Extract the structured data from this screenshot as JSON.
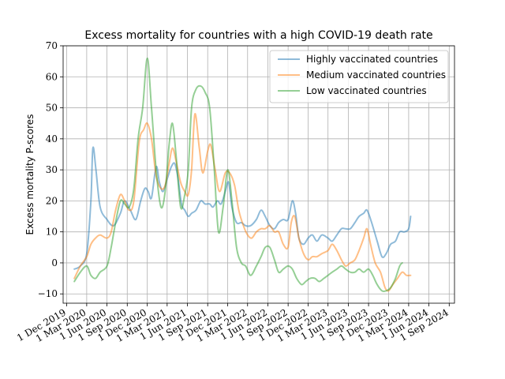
{
  "chart_data": {
    "type": "line",
    "title": "Excess mortality for countries with a high COVID-19 death rate",
    "xlabel": "",
    "ylabel": "Excess mortality P-scores",
    "ylim": [
      -13,
      70
    ],
    "xlim": [
      "2019-11-15",
      "2024-09-25"
    ],
    "grid": true,
    "legend_position": "top-right",
    "y_ticks": [
      -10,
      0,
      10,
      20,
      30,
      40,
      50,
      60,
      70
    ],
    "x_ticks": [
      {
        "date": "2019-12-01",
        "label": "1 Dec 2019"
      },
      {
        "date": "2020-03-01",
        "label": "1 Mar 2020"
      },
      {
        "date": "2020-06-01",
        "label": "1 Jun 2020"
      },
      {
        "date": "2020-09-01",
        "label": "1 Sep 2020"
      },
      {
        "date": "2020-12-01",
        "label": "1 Dec 2020"
      },
      {
        "date": "2021-03-01",
        "label": "1 Mar 2021"
      },
      {
        "date": "2021-06-01",
        "label": "1 Jun 2021"
      },
      {
        "date": "2021-09-01",
        "label": "1 Sep 2021"
      },
      {
        "date": "2021-12-01",
        "label": "1 Dec 2021"
      },
      {
        "date": "2022-03-01",
        "label": "1 Mar 2022"
      },
      {
        "date": "2022-06-01",
        "label": "1 Jun 2022"
      },
      {
        "date": "2022-09-01",
        "label": "1 Sep 2022"
      },
      {
        "date": "2022-12-01",
        "label": "1 Dec 2022"
      },
      {
        "date": "2023-03-01",
        "label": "1 Mar 2023"
      },
      {
        "date": "2023-06-01",
        "label": "1 Jun 2023"
      },
      {
        "date": "2023-09-01",
        "label": "1 Sep 2023"
      },
      {
        "date": "2023-12-01",
        "label": "1 Dec 2023"
      },
      {
        "date": "2024-03-01",
        "label": "1 Mar 2024"
      },
      {
        "date": "2024-06-01",
        "label": "1 Jun 2024"
      },
      {
        "date": "2024-09-01",
        "label": "1 Sep 2024"
      }
    ],
    "series": [
      {
        "name": "Highly vaccinated countries",
        "color": "#1f77b4",
        "points": [
          [
            "2020-01-05",
            -2
          ],
          [
            "2020-02-01",
            -1
          ],
          [
            "2020-03-01",
            3
          ],
          [
            "2020-03-20",
            20
          ],
          [
            "2020-03-29",
            37
          ],
          [
            "2020-04-12",
            30
          ],
          [
            "2020-05-01",
            18
          ],
          [
            "2020-06-01",
            14
          ],
          [
            "2020-07-01",
            12
          ],
          [
            "2020-08-01",
            16
          ],
          [
            "2020-08-20",
            20
          ],
          [
            "2020-09-15",
            17
          ],
          [
            "2020-10-10",
            14
          ],
          [
            "2020-11-01",
            20
          ],
          [
            "2020-11-20",
            24
          ],
          [
            "2020-12-05",
            23
          ],
          [
            "2020-12-20",
            21
          ],
          [
            "2021-01-10",
            31
          ],
          [
            "2021-01-25",
            26
          ],
          [
            "2021-02-10",
            23
          ],
          [
            "2021-03-01",
            27
          ],
          [
            "2021-03-20",
            31
          ],
          [
            "2021-04-05",
            32
          ],
          [
            "2021-04-20",
            27
          ],
          [
            "2021-05-05",
            19
          ],
          [
            "2021-05-20",
            17
          ],
          [
            "2021-06-05",
            15
          ],
          [
            "2021-06-20",
            16
          ],
          [
            "2021-07-10",
            17
          ],
          [
            "2021-08-01",
            20
          ],
          [
            "2021-08-20",
            19
          ],
          [
            "2021-09-10",
            19
          ],
          [
            "2021-09-25",
            18
          ],
          [
            "2021-10-15",
            20
          ],
          [
            "2021-11-01",
            19
          ],
          [
            "2021-11-20",
            23
          ],
          [
            "2021-12-05",
            26
          ],
          [
            "2021-12-20",
            18
          ],
          [
            "2022-01-10",
            13
          ],
          [
            "2022-02-01",
            13
          ],
          [
            "2022-02-20",
            12
          ],
          [
            "2022-03-15",
            12
          ],
          [
            "2022-04-10",
            14
          ],
          [
            "2022-05-01",
            17
          ],
          [
            "2022-05-20",
            15
          ],
          [
            "2022-06-10",
            12
          ],
          [
            "2022-07-01",
            11
          ],
          [
            "2022-07-20",
            13
          ],
          [
            "2022-08-10",
            14
          ],
          [
            "2022-09-01",
            14
          ],
          [
            "2022-09-20",
            20
          ],
          [
            "2022-10-05",
            16
          ],
          [
            "2022-10-20",
            8
          ],
          [
            "2022-11-10",
            6
          ],
          [
            "2022-12-01",
            8
          ],
          [
            "2022-12-20",
            9
          ],
          [
            "2023-01-10",
            7
          ],
          [
            "2023-02-01",
            9
          ],
          [
            "2023-03-01",
            8
          ],
          [
            "2023-03-20",
            7
          ],
          [
            "2023-04-10",
            9
          ],
          [
            "2023-05-01",
            11
          ],
          [
            "2023-05-20",
            11
          ],
          [
            "2023-06-10",
            11
          ],
          [
            "2023-07-01",
            13
          ],
          [
            "2023-07-20",
            15
          ],
          [
            "2023-08-10",
            16
          ],
          [
            "2023-08-25",
            17
          ],
          [
            "2023-09-15",
            13
          ],
          [
            "2023-10-10",
            7
          ],
          [
            "2023-11-01",
            2
          ],
          [
            "2023-11-20",
            3
          ],
          [
            "2023-12-10",
            6
          ],
          [
            "2024-01-01",
            7
          ],
          [
            "2024-01-20",
            10
          ],
          [
            "2024-02-10",
            10
          ],
          [
            "2024-03-01",
            11
          ],
          [
            "2024-03-10",
            15
          ]
        ]
      },
      {
        "name": "Medium vaccinated countries",
        "color": "#ff7f0e",
        "points": [
          [
            "2020-01-05",
            -5
          ],
          [
            "2020-02-01",
            -1
          ],
          [
            "2020-03-01",
            2
          ],
          [
            "2020-03-20",
            6
          ],
          [
            "2020-04-10",
            8
          ],
          [
            "2020-05-01",
            9
          ],
          [
            "2020-06-01",
            8
          ],
          [
            "2020-06-20",
            10
          ],
          [
            "2020-07-10",
            17
          ],
          [
            "2020-08-01",
            22
          ],
          [
            "2020-08-20",
            20
          ],
          [
            "2020-09-10",
            17
          ],
          [
            "2020-10-01",
            20
          ],
          [
            "2020-10-25",
            39
          ],
          [
            "2020-11-15",
            43
          ],
          [
            "2020-12-01",
            45
          ],
          [
            "2020-12-20",
            40
          ],
          [
            "2021-01-10",
            28
          ],
          [
            "2021-02-01",
            24
          ],
          [
            "2021-02-20",
            25
          ],
          [
            "2021-03-10",
            32
          ],
          [
            "2021-03-25",
            37
          ],
          [
            "2021-04-10",
            33
          ],
          [
            "2021-05-01",
            26
          ],
          [
            "2021-05-20",
            23
          ],
          [
            "2021-06-05",
            22
          ],
          [
            "2021-06-20",
            30
          ],
          [
            "2021-07-05",
            48
          ],
          [
            "2021-07-25",
            37
          ],
          [
            "2021-08-10",
            29
          ],
          [
            "2021-09-01",
            36
          ],
          [
            "2021-09-15",
            38
          ],
          [
            "2021-10-05",
            30
          ],
          [
            "2021-10-25",
            23
          ],
          [
            "2021-11-20",
            29
          ],
          [
            "2021-12-10",
            29
          ],
          [
            "2022-01-01",
            25
          ],
          [
            "2022-01-20",
            17
          ],
          [
            "2022-02-10",
            12
          ],
          [
            "2022-03-01",
            9
          ],
          [
            "2022-03-20",
            8
          ],
          [
            "2022-04-10",
            10
          ],
          [
            "2022-05-01",
            11
          ],
          [
            "2022-05-20",
            11
          ],
          [
            "2022-06-10",
            12
          ],
          [
            "2022-07-01",
            10
          ],
          [
            "2022-07-20",
            10
          ],
          [
            "2022-08-10",
            6
          ],
          [
            "2022-09-01",
            5
          ],
          [
            "2022-09-15",
            13
          ],
          [
            "2022-10-01",
            15
          ],
          [
            "2022-10-20",
            8
          ],
          [
            "2022-11-10",
            3
          ],
          [
            "2022-12-01",
            1
          ],
          [
            "2022-12-20",
            2
          ],
          [
            "2023-01-10",
            2
          ],
          [
            "2023-02-01",
            3
          ],
          [
            "2023-03-01",
            4
          ],
          [
            "2023-03-20",
            6
          ],
          [
            "2023-04-10",
            4
          ],
          [
            "2023-05-01",
            1
          ],
          [
            "2023-05-20",
            -1
          ],
          [
            "2023-06-10",
            0
          ],
          [
            "2023-07-01",
            1
          ],
          [
            "2023-07-20",
            4
          ],
          [
            "2023-08-10",
            8
          ],
          [
            "2023-08-25",
            11
          ],
          [
            "2023-09-10",
            6
          ],
          [
            "2023-10-01",
            0
          ],
          [
            "2023-10-25",
            -3
          ],
          [
            "2023-11-15",
            -8
          ],
          [
            "2023-12-01",
            -9
          ],
          [
            "2023-12-20",
            -7
          ],
          [
            "2024-01-10",
            -5
          ],
          [
            "2024-02-01",
            -3
          ],
          [
            "2024-02-20",
            -4
          ],
          [
            "2024-03-10",
            -4
          ]
        ]
      },
      {
        "name": "Low vaccinated countries",
        "color": "#2ca02c",
        "points": [
          [
            "2020-01-05",
            -6
          ],
          [
            "2020-02-01",
            -3
          ],
          [
            "2020-03-01",
            -1
          ],
          [
            "2020-03-20",
            -4
          ],
          [
            "2020-04-10",
            -5
          ],
          [
            "2020-05-01",
            -3
          ],
          [
            "2020-06-01",
            -1
          ],
          [
            "2020-06-20",
            5
          ],
          [
            "2020-07-10",
            13
          ],
          [
            "2020-08-01",
            20
          ],
          [
            "2020-08-20",
            19
          ],
          [
            "2020-09-10",
            18
          ],
          [
            "2020-10-01",
            24
          ],
          [
            "2020-10-20",
            40
          ],
          [
            "2020-11-10",
            50
          ],
          [
            "2020-12-01",
            66
          ],
          [
            "2020-12-20",
            50
          ],
          [
            "2021-01-10",
            30
          ],
          [
            "2021-02-01",
            18
          ],
          [
            "2021-02-20",
            23
          ],
          [
            "2021-03-10",
            38
          ],
          [
            "2021-03-25",
            45
          ],
          [
            "2021-04-10",
            35
          ],
          [
            "2021-05-01",
            18
          ],
          [
            "2021-05-20",
            22
          ],
          [
            "2021-06-05",
            30
          ],
          [
            "2021-06-20",
            50
          ],
          [
            "2021-07-10",
            56
          ],
          [
            "2021-08-01",
            57
          ],
          [
            "2021-08-20",
            55
          ],
          [
            "2021-09-10",
            50
          ],
          [
            "2021-10-01",
            30
          ],
          [
            "2021-10-20",
            10
          ],
          [
            "2021-11-10",
            18
          ],
          [
            "2021-12-01",
            30
          ],
          [
            "2021-12-20",
            20
          ],
          [
            "2022-01-10",
            5
          ],
          [
            "2022-02-01",
            0
          ],
          [
            "2022-02-20",
            -1
          ],
          [
            "2022-03-15",
            -4
          ],
          [
            "2022-04-10",
            -1
          ],
          [
            "2022-05-01",
            2
          ],
          [
            "2022-05-20",
            5
          ],
          [
            "2022-06-10",
            5
          ],
          [
            "2022-07-01",
            1
          ],
          [
            "2022-07-20",
            -3
          ],
          [
            "2022-08-10",
            -2
          ],
          [
            "2022-09-01",
            -1
          ],
          [
            "2022-09-20",
            -2
          ],
          [
            "2022-10-10",
            -5
          ],
          [
            "2022-11-01",
            -7
          ],
          [
            "2022-11-20",
            -6
          ],
          [
            "2022-12-10",
            -5
          ],
          [
            "2023-01-01",
            -5
          ],
          [
            "2023-01-20",
            -6
          ],
          [
            "2023-02-10",
            -5
          ],
          [
            "2023-03-01",
            -4
          ],
          [
            "2023-03-20",
            -3
          ],
          [
            "2023-04-10",
            -2
          ],
          [
            "2023-05-01",
            -1
          ],
          [
            "2023-05-20",
            -2
          ],
          [
            "2023-06-10",
            -3
          ],
          [
            "2023-07-01",
            -3
          ],
          [
            "2023-07-20",
            -2
          ],
          [
            "2023-08-10",
            -3
          ],
          [
            "2023-09-01",
            -2
          ],
          [
            "2023-09-20",
            -4
          ],
          [
            "2023-10-10",
            -7
          ],
          [
            "2023-11-01",
            -9
          ],
          [
            "2023-11-20",
            -9
          ],
          [
            "2023-12-10",
            -8
          ],
          [
            "2024-01-01",
            -5
          ],
          [
            "2024-01-20",
            -1
          ],
          [
            "2024-02-01",
            0
          ]
        ]
      }
    ]
  }
}
